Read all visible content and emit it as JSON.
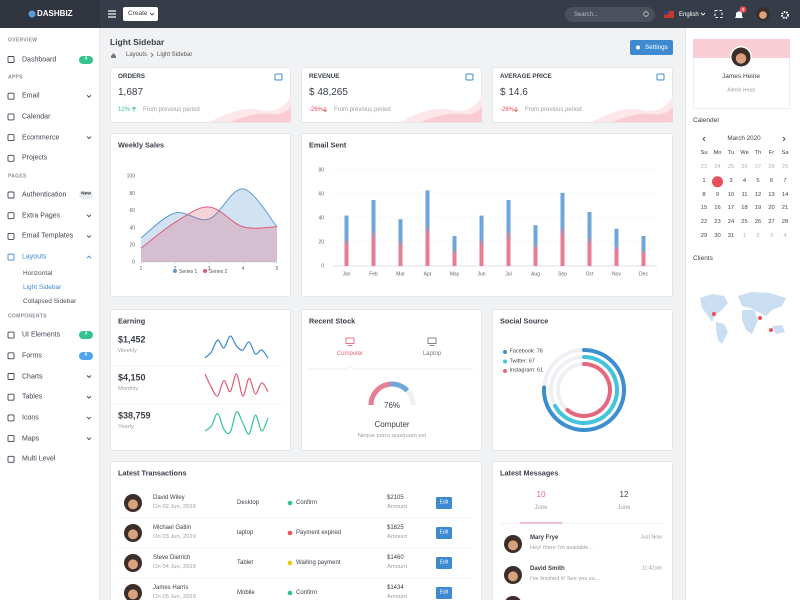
{
  "topbar": {
    "brand": "DASHBIZ",
    "create_button": "Create",
    "search_placeholder": "Search...",
    "language": "English",
    "notification_count": 3
  },
  "sidebar": {
    "sections": [
      {
        "title": "OVERVIEW",
        "items": [
          {
            "label": "Dashboard",
            "badge": 3,
            "badge_color": "#34c38f"
          }
        ]
      },
      {
        "title": "APPS",
        "items": [
          {
            "label": "Email",
            "has_submenu": true
          },
          {
            "label": "Calendar"
          },
          {
            "label": "Ecommerce",
            "has_submenu": true
          },
          {
            "label": "Projects"
          }
        ]
      },
      {
        "title": "PAGES",
        "items": [
          {
            "label": "Authentication",
            "badge": "New",
            "badge_color": "#e9ecef"
          },
          {
            "label": "Extra Pages",
            "has_submenu": true
          },
          {
            "label": "Email Templates",
            "has_submenu": true
          },
          {
            "label": "Layouts",
            "has_submenu": true,
            "active": true,
            "children": [
              {
                "label": "Horizontal"
              },
              {
                "label": "Light Sidebar",
                "active": true
              },
              {
                "label": "Collapsed Sidebar"
              }
            ]
          }
        ]
      },
      {
        "title": "COMPONENTS",
        "items": [
          {
            "label": "UI Elements",
            "badge": 3,
            "badge_color": "#34c38f"
          },
          {
            "label": "Forms",
            "badge": 6,
            "badge_color": "#50a5f1"
          },
          {
            "label": "Charts",
            "has_submenu": true
          },
          {
            "label": "Tables",
            "has_submenu": true
          },
          {
            "label": "Icons",
            "has_submenu": true
          },
          {
            "label": "Maps",
            "has_submenu": true
          },
          {
            "label": "Multi Level"
          }
        ]
      }
    ]
  },
  "page_header": {
    "title": "Light Sidebar",
    "breadcrumb": [
      "Layouts",
      "Light Sidebar"
    ],
    "settings_button": "Settings"
  },
  "stats": [
    {
      "title": "ORDERS",
      "value": "1,687",
      "change": "12%",
      "trend": "up",
      "note": "From previous period"
    },
    {
      "title": "REVENUE",
      "value": "$ 48,265",
      "change": "-26%",
      "trend": "down",
      "note": "From previous period"
    },
    {
      "title": "AVERAGE PRICE",
      "value": "$ 14.6",
      "change": "-26%",
      "trend": "down",
      "note": "From previous period"
    }
  ],
  "weekly_sales": {
    "type": "area",
    "title": "Weekly Sales",
    "x": [
      1,
      2,
      3,
      4,
      5
    ],
    "xlim": [
      1,
      5
    ],
    "xticks": [
      1,
      2,
      3,
      4,
      5
    ],
    "ylim": [
      0,
      100
    ],
    "yticks": [
      0,
      20,
      40,
      60,
      80,
      100
    ],
    "grid": false,
    "series": [
      {
        "name": "Series 1",
        "color": "#5b9bd5",
        "values": [
          28,
          57,
          50,
          85,
          41
        ]
      },
      {
        "name": "Series 2",
        "color": "#e05c75",
        "values": [
          16,
          46,
          64,
          41,
          41
        ]
      }
    ]
  },
  "email_sent": {
    "type": "bar",
    "title": "Email Sent",
    "categories": [
      "Jan",
      "Feb",
      "Mar",
      "Apr",
      "May",
      "Jun",
      "Jul",
      "Aug",
      "Sep",
      "Oct",
      "Nov",
      "Dec"
    ],
    "values": [
      42,
      55,
      39,
      63,
      25,
      42,
      55,
      34,
      61,
      45,
      31,
      25
    ],
    "colors": [
      "#6ea6d8",
      "#e77c92"
    ],
    "ylim": [
      0,
      80
    ],
    "yticks": [
      0,
      20,
      40,
      60,
      80
    ],
    "grid": true
  },
  "earning": {
    "title": "Earning",
    "rows": [
      {
        "amount": "$1,452",
        "period": "Weekly",
        "color": "#3d8ad1",
        "trend": [
          18,
          24,
          36,
          28,
          40,
          30,
          26,
          34,
          22,
          26,
          18
        ]
      },
      {
        "amount": "$4,150",
        "period": "Monthly",
        "color": "#e05c75",
        "trend": [
          30,
          18,
          10,
          24,
          14,
          30,
          10,
          26,
          12,
          22,
          14
        ]
      },
      {
        "amount": "$38,759",
        "period": "Yearly",
        "color": "#34c38f",
        "trend": [
          10,
          16,
          32,
          12,
          8,
          34,
          20,
          6,
          30,
          10,
          26
        ]
      }
    ]
  },
  "recent_stock": {
    "title": "Recent Stock",
    "tabs": [
      "Computer",
      "Laptop"
    ],
    "active_tab": 0,
    "gauge": {
      "value": 76,
      "value_label": "76%",
      "colors": [
        "#e77c92",
        "#6ea6d8"
      ]
    },
    "product": "Computer",
    "description": "Neque porro quisquam est"
  },
  "social_source": {
    "type": "donut",
    "title": "Social Source",
    "value_labels": [
      "Facebook: 76",
      "Twitter: 67",
      "Instagram: 61"
    ],
    "values": [
      76,
      67,
      61
    ],
    "colors": [
      "#3b8ed0",
      "#44c4dc",
      "#e5677d"
    ]
  },
  "transactions": {
    "title": "Latest Transactions",
    "amount_label": "Amount",
    "edit_button": "Edit",
    "rows": [
      {
        "name": "David Wiley",
        "date": "On 02 Jun, 2019",
        "device": "Desktop",
        "status": "Confirm",
        "status_color": "#34c38f",
        "amount": "$2105"
      },
      {
        "name": "Michael Gatlin",
        "date": "On 03 Jun, 2019",
        "device": "laptop",
        "status": "Payment expired",
        "status_color": "#e8505b",
        "amount": "$1825"
      },
      {
        "name": "Steve Dietrich",
        "date": "On 04 Jun, 2019",
        "device": "Tablet",
        "status": "Waiting payment",
        "status_color": "#f1c40f",
        "amount": "$1460"
      },
      {
        "name": "James Harris",
        "date": "On 05 Jun, 2019",
        "device": "Mobile",
        "status": "Confirm",
        "status_color": "#34c38f",
        "amount": "$1434"
      }
    ]
  },
  "messages": {
    "title": "Latest Messages",
    "tabs": [
      {
        "count": 10,
        "month": "June"
      },
      {
        "count": 12,
        "month": "June"
      }
    ],
    "active_tab": 0,
    "items": [
      {
        "name": "Mary Frye",
        "text": "Hey! there I'm available...",
        "time": "Just Now"
      },
      {
        "name": "David Smith",
        "text": "I've finished it! See you so...",
        "time": "11:42am"
      }
    ]
  },
  "profile": {
    "name": "James Heine",
    "role": "Admin Head"
  },
  "calendar": {
    "title": "Calender",
    "month": "March 2020",
    "weekdays": [
      "Su",
      "Mo",
      "Tu",
      "We",
      "Th",
      "Fr",
      "Sa"
    ],
    "weeks": [
      [
        23,
        24,
        25,
        26,
        27,
        28,
        29
      ],
      [
        1,
        2,
        3,
        4,
        5,
        6,
        7
      ],
      [
        8,
        9,
        10,
        11,
        12,
        13,
        14
      ],
      [
        15,
        16,
        17,
        18,
        19,
        20,
        21
      ],
      [
        22,
        23,
        24,
        25,
        26,
        27,
        28
      ],
      [
        29,
        30,
        31,
        1,
        2,
        3,
        4
      ]
    ],
    "selected": 2
  },
  "clients": {
    "title": "Clients"
  }
}
